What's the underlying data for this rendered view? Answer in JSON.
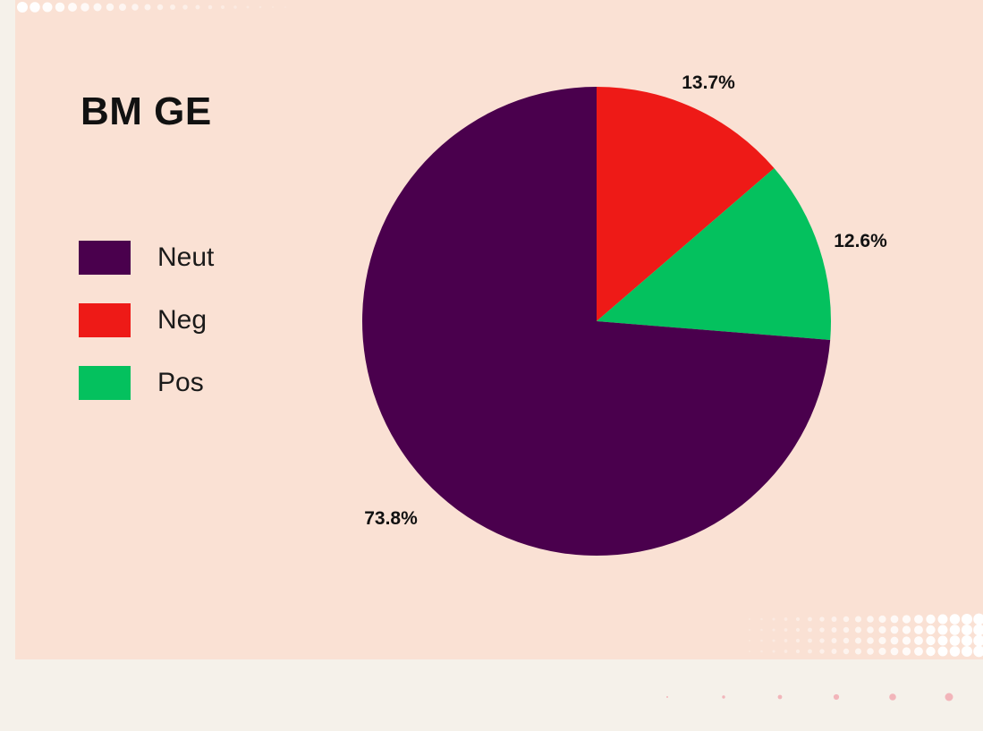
{
  "chart_data": {
    "type": "pie",
    "title": "BM GE",
    "slices": [
      {
        "label": "Neg",
        "value": 13.7,
        "display": "13.7%",
        "color": "#ee1a17"
      },
      {
        "label": "Pos",
        "value": 12.6,
        "display": "12.6%",
        "color": "#04c15e"
      },
      {
        "label": "Neut",
        "value": 73.8,
        "display": "73.8%",
        "color": "#4a004d"
      }
    ],
    "start_angle": "12 o'clock",
    "direction": "clockwise",
    "legend": {
      "placement": "left",
      "items": [
        {
          "label": "Neut",
          "color": "#4a004d"
        },
        {
          "label": "Neg",
          "color": "#ee1a17"
        },
        {
          "label": "Pos",
          "color": "#04c15e"
        }
      ]
    }
  },
  "colors": {
    "background": "#fae1d4",
    "page": "#f5f1ea"
  }
}
